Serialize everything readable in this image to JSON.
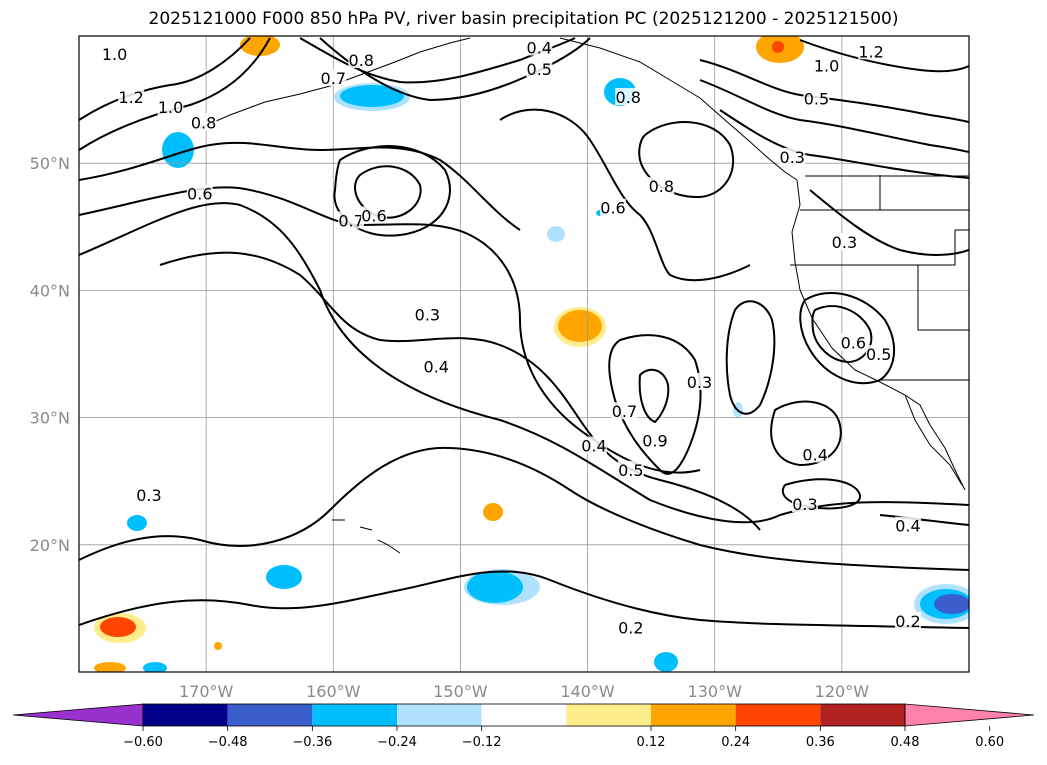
{
  "title": "2025121000 F000 850 hPa PV, river basin precipitation PC (2025121200 - 2025121500)",
  "map": {
    "lon_range": [
      -180,
      -110
    ],
    "lat_range": [
      10,
      60
    ],
    "lat_ticks": [
      {
        "value": 50,
        "label": "50°N"
      },
      {
        "value": 40,
        "label": "40°N"
      },
      {
        "value": 30,
        "label": "30°N"
      },
      {
        "value": 20,
        "label": "20°N"
      }
    ],
    "lon_ticks": [
      {
        "value": -170,
        "label": "170°W"
      },
      {
        "value": -160,
        "label": "160°W"
      },
      {
        "value": -150,
        "label": "150°W"
      },
      {
        "value": -140,
        "label": "140°W"
      },
      {
        "value": -130,
        "label": "130°W"
      },
      {
        "value": -120,
        "label": "120°W"
      }
    ],
    "contour_labels": [
      {
        "text": "1.0",
        "lon": -177.2,
        "lat": 58.6
      },
      {
        "text": "1.2",
        "lon": -175.9,
        "lat": 55.2
      },
      {
        "text": "1.0",
        "lon": -172.8,
        "lat": 54.4
      },
      {
        "text": "0.8",
        "lon": -170.2,
        "lat": 53.2
      },
      {
        "text": "0.6",
        "lon": -170.5,
        "lat": 47.6
      },
      {
        "text": "0.8",
        "lon": -157.8,
        "lat": 58.1
      },
      {
        "text": "0.7",
        "lon": -160.0,
        "lat": 56.7
      },
      {
        "text": "0.4",
        "lon": -143.8,
        "lat": 59.1
      },
      {
        "text": "0.5",
        "lon": -143.8,
        "lat": 57.4
      },
      {
        "text": "0.7",
        "lon": -158.6,
        "lat": 45.5
      },
      {
        "text": "0.6",
        "lon": -156.8,
        "lat": 45.9
      },
      {
        "text": "0.8",
        "lon": -136.8,
        "lat": 55.2
      },
      {
        "text": "0.8",
        "lon": -134.2,
        "lat": 48.2
      },
      {
        "text": "0.6",
        "lon": -138.0,
        "lat": 46.5
      },
      {
        "text": "1.0",
        "lon": -121.2,
        "lat": 57.7
      },
      {
        "text": "1.2",
        "lon": -117.7,
        "lat": 58.8
      },
      {
        "text": "0.5",
        "lon": -122.0,
        "lat": 55.1
      },
      {
        "text": "0.3",
        "lon": -123.9,
        "lat": 50.5
      },
      {
        "text": "0.3",
        "lon": -119.8,
        "lat": 43.8
      },
      {
        "text": "0.3",
        "lon": -152.6,
        "lat": 38.1
      },
      {
        "text": "0.4",
        "lon": -151.9,
        "lat": 34.0
      },
      {
        "text": "0.6",
        "lon": -119.1,
        "lat": 35.9
      },
      {
        "text": "0.5",
        "lon": -117.1,
        "lat": 35.0
      },
      {
        "text": "0.7",
        "lon": -137.1,
        "lat": 30.5
      },
      {
        "text": "0.9",
        "lon": -134.7,
        "lat": 28.2
      },
      {
        "text": "0.3",
        "lon": -131.2,
        "lat": 32.8
      },
      {
        "text": "0.4",
        "lon": -139.5,
        "lat": 27.8
      },
      {
        "text": "0.5",
        "lon": -136.6,
        "lat": 25.9
      },
      {
        "text": "0.4",
        "lon": -122.1,
        "lat": 27.1
      },
      {
        "text": "0.3",
        "lon": -122.9,
        "lat": 23.2
      },
      {
        "text": "0.4",
        "lon": -114.8,
        "lat": 21.5
      },
      {
        "text": "0.3",
        "lon": -174.5,
        "lat": 23.9
      },
      {
        "text": "0.2",
        "lon": -136.6,
        "lat": 13.5
      },
      {
        "text": "0.2",
        "lon": -114.8,
        "lat": 14.0
      }
    ]
  },
  "colorbar": {
    "ticks": [
      "−0.60",
      "−0.48",
      "−0.36",
      "−0.24",
      "−0.12",
      "0.12",
      "0.24",
      "0.36",
      "0.48",
      "0.60"
    ],
    "colors": [
      "#9932cc",
      "#00008b",
      "#3a5fcd",
      "#00bfff",
      "#b0e2ff",
      "#ffffff",
      "#ffec8b",
      "#ffa500",
      "#ff4500",
      "#b22222",
      "#ff82ab"
    ]
  }
}
